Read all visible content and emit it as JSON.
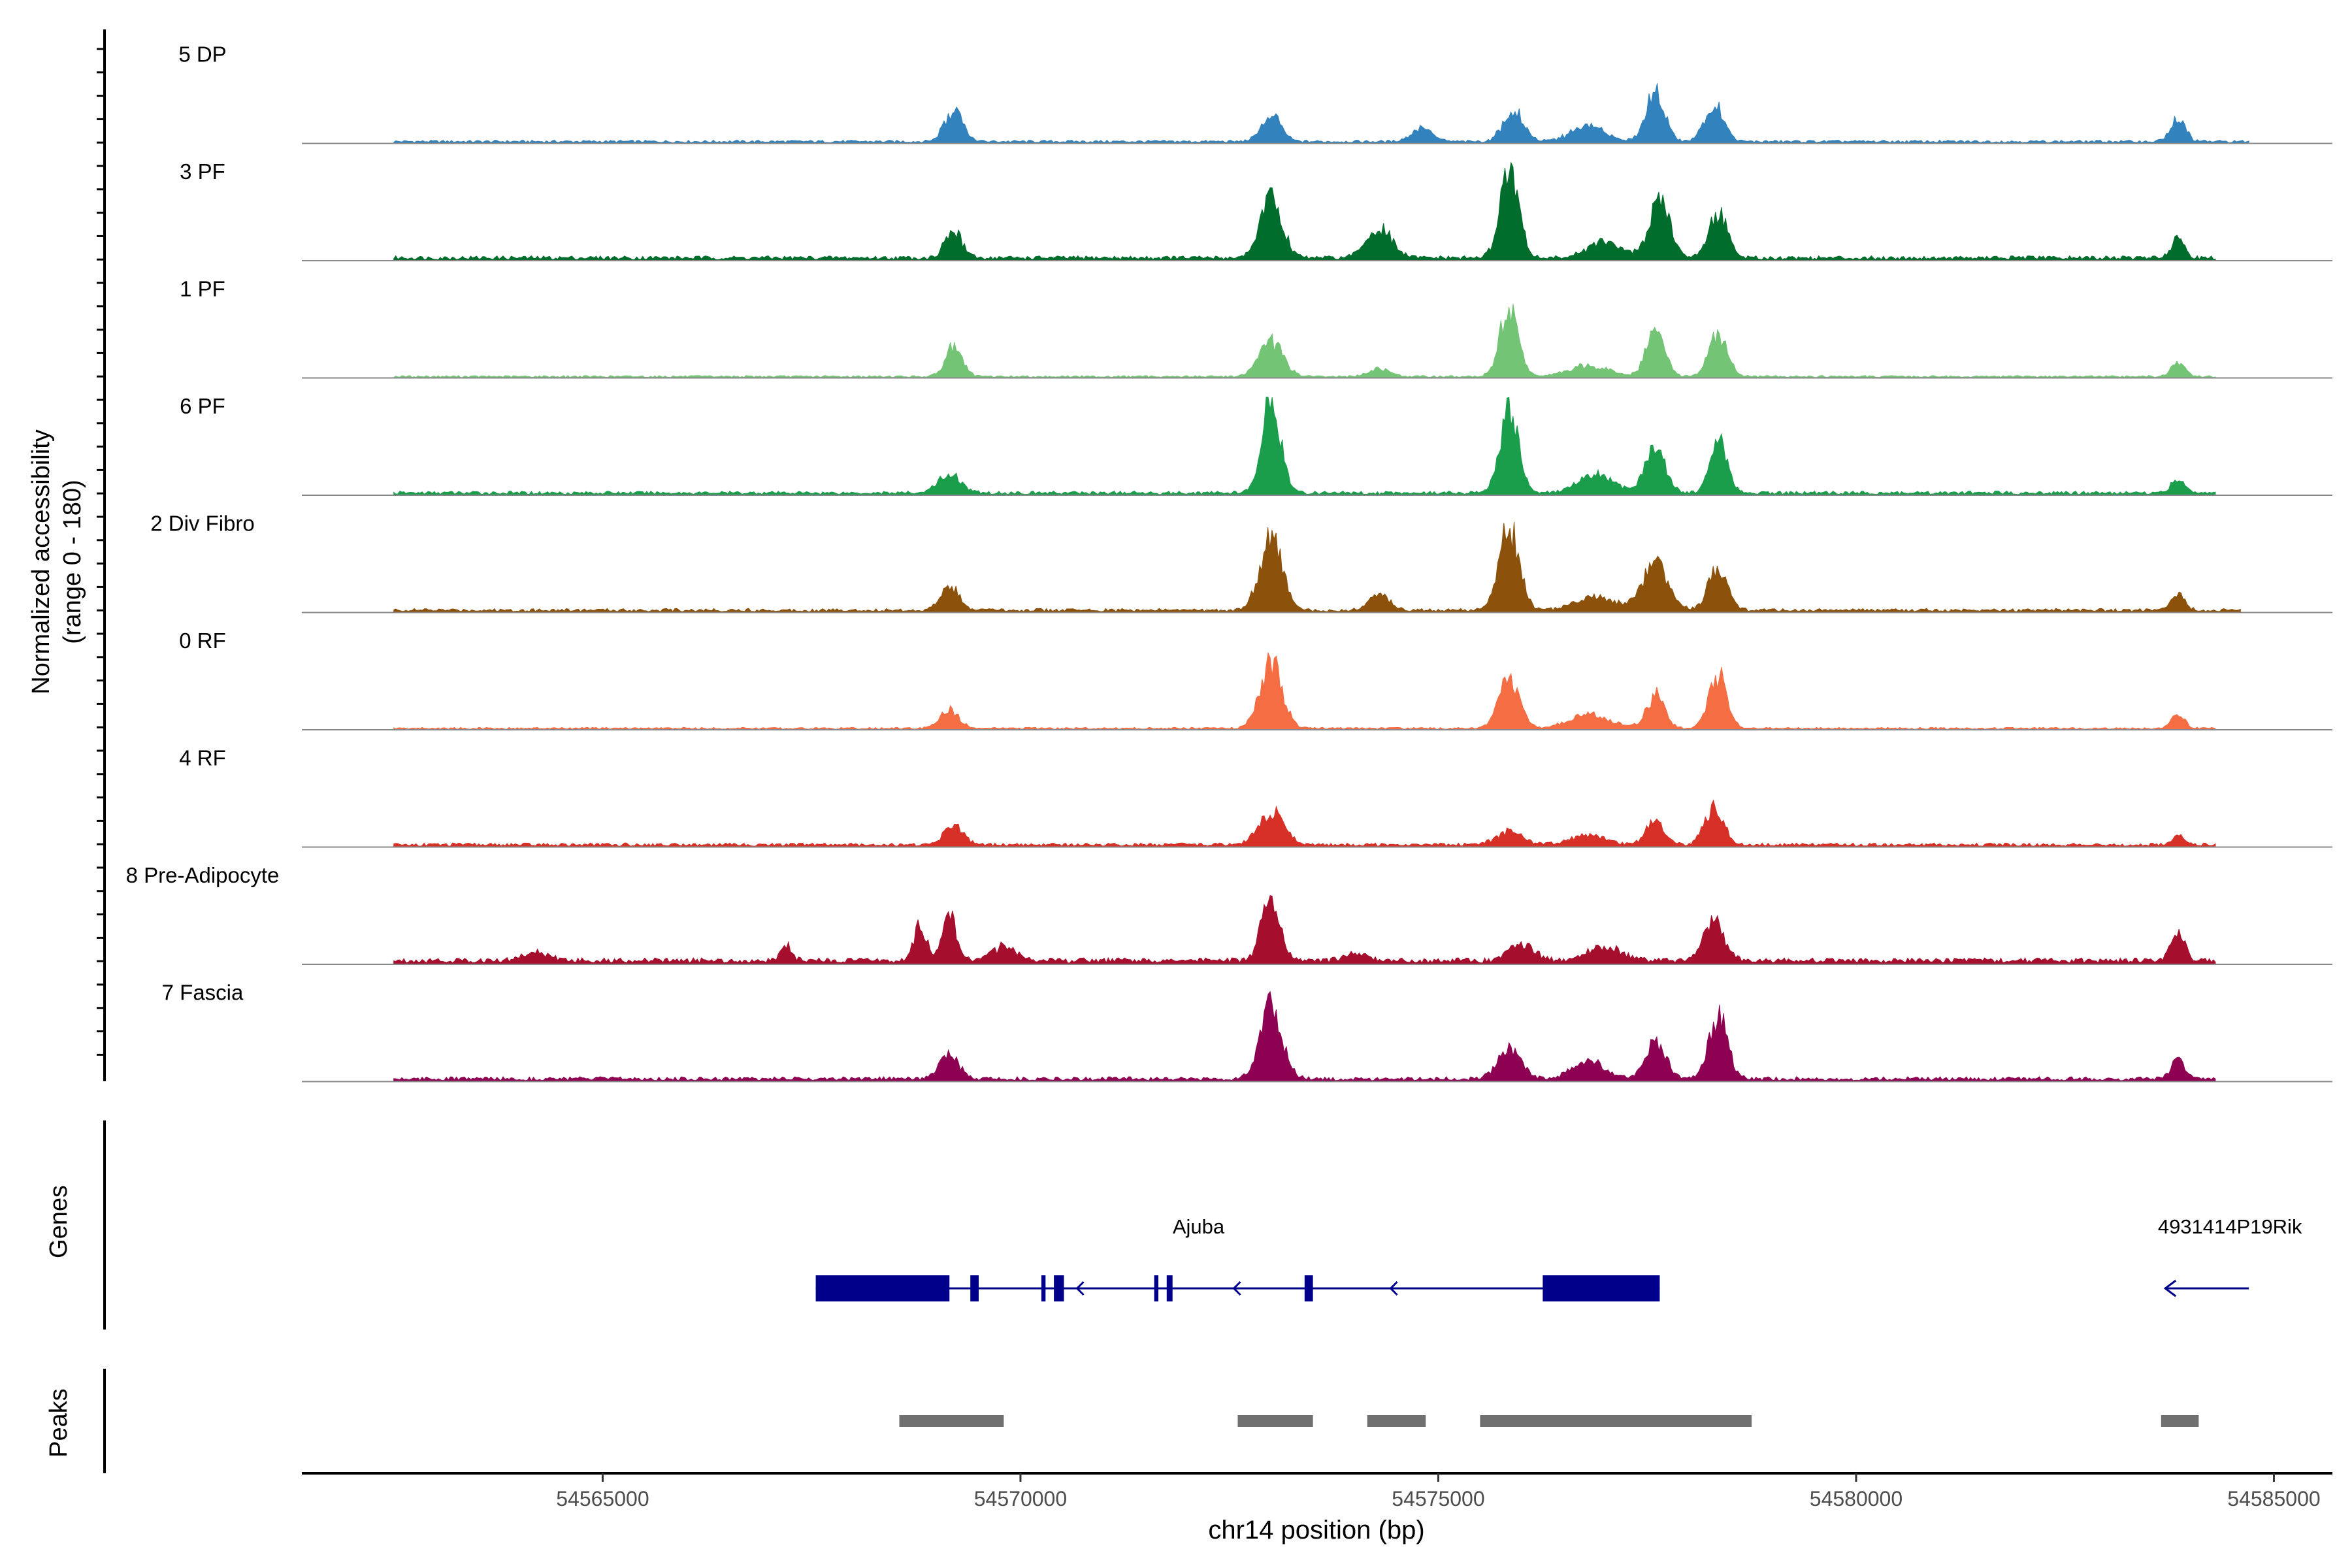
{
  "chart_data": {
    "type": "area",
    "title": "",
    "ylabel_line1": "Normalized accessibility",
    "ylabel_line2": "(range 0 - 180)",
    "xlabel": "chr14 position (bp)",
    "ylim": [
      0,
      180
    ],
    "xlim": [
      54561400,
      54585700
    ],
    "x_ticks": [
      54565000,
      54570000,
      54575000,
      54580000,
      54585000
    ],
    "x_tick_labels": [
      "54565000",
      "54570000",
      "54575000",
      "54580000",
      "54585000"
    ],
    "genes_label": "Genes",
    "peaks_label": "Peaks",
    "tracks": [
      {
        "name": "5 DP",
        "color": "#3182BD",
        "peaks": [
          [
            54569200,
            55,
            110
          ],
          [
            54573000,
            45,
            120
          ],
          [
            54574800,
            25,
            120
          ],
          [
            54575900,
            60,
            120
          ],
          [
            54576800,
            30,
            200
          ],
          [
            54577600,
            95,
            110
          ],
          [
            54578300,
            70,
            110
          ],
          [
            54583850,
            40,
            90
          ]
        ],
        "base": 4,
        "bg_start": 54562500,
        "bg_end": 54584700
      },
      {
        "name": "3 PF",
        "color": "#006D2C",
        "peaks": [
          [
            54569200,
            50,
            100
          ],
          [
            54573000,
            110,
            130
          ],
          [
            54574300,
            55,
            150
          ],
          [
            54575850,
            165,
            110
          ],
          [
            54577000,
            30,
            200
          ],
          [
            54577650,
            105,
            120
          ],
          [
            54578350,
            85,
            110
          ],
          [
            54583850,
            35,
            80
          ]
        ],
        "base": 6,
        "bg_start": 54562500,
        "bg_end": 54584300
      },
      {
        "name": "1 PF",
        "color": "#74C476",
        "peaks": [
          [
            54569200,
            55,
            100
          ],
          [
            54573000,
            65,
            140
          ],
          [
            54574300,
            15,
            120
          ],
          [
            54575850,
            125,
            110
          ],
          [
            54576800,
            20,
            250
          ],
          [
            54577600,
            85,
            110
          ],
          [
            54578350,
            80,
            110
          ],
          [
            54583850,
            25,
            80
          ]
        ],
        "base": 3,
        "bg_start": 54562500,
        "bg_end": 54584300
      },
      {
        "name": "6 PF",
        "color": "#1B9E4C",
        "peaks": [
          [
            54569150,
            35,
            130
          ],
          [
            54573000,
            175,
            110
          ],
          [
            54575850,
            160,
            110
          ],
          [
            54576900,
            35,
            200
          ],
          [
            54577600,
            85,
            120
          ],
          [
            54578350,
            95,
            100
          ],
          [
            54583850,
            25,
            80
          ]
        ],
        "base": 5,
        "bg_start": 54562500,
        "bg_end": 54584300
      },
      {
        "name": "2 Div Fibro",
        "color": "#8C510A",
        "peaks": [
          [
            54569150,
            45,
            110
          ],
          [
            54573000,
            135,
            130
          ],
          [
            54574300,
            35,
            110
          ],
          [
            54575850,
            150,
            120
          ],
          [
            54576900,
            25,
            250
          ],
          [
            54577600,
            85,
            150
          ],
          [
            54578350,
            80,
            110
          ],
          [
            54583850,
            30,
            80
          ]
        ],
        "base": 5,
        "bg_start": 54562500,
        "bg_end": 54584600
      },
      {
        "name": "0 RF",
        "color": "#F46D43",
        "peaks": [
          [
            54569150,
            35,
            110
          ],
          [
            54573000,
            120,
            130
          ],
          [
            54575850,
            90,
            120
          ],
          [
            54576800,
            25,
            250
          ],
          [
            54577600,
            60,
            110
          ],
          [
            54578350,
            95,
            110
          ],
          [
            54583850,
            25,
            80
          ]
        ],
        "base": 3,
        "bg_start": 54562500,
        "bg_end": 54584300
      },
      {
        "name": "4 RF",
        "color": "#D73027",
        "peaks": [
          [
            54569200,
            35,
            110
          ],
          [
            54573000,
            60,
            150
          ],
          [
            54575850,
            25,
            150
          ],
          [
            54576800,
            20,
            200
          ],
          [
            54577600,
            45,
            110
          ],
          [
            54578300,
            70,
            110
          ],
          [
            54583850,
            15,
            80
          ]
        ],
        "base": 5,
        "bg_start": 54562500,
        "bg_end": 54584300
      },
      {
        "name": "8 Pre-Adipocyte",
        "color": "#A50F2D",
        "peaks": [
          [
            54568800,
            65,
            70
          ],
          [
            54569150,
            75,
            90
          ],
          [
            54569800,
            25,
            150
          ],
          [
            54573000,
            115,
            110
          ],
          [
            54574000,
            15,
            120
          ],
          [
            54576000,
            30,
            150
          ],
          [
            54577000,
            25,
            200
          ],
          [
            54578300,
            70,
            120
          ],
          [
            54583850,
            55,
            80
          ],
          [
            54567200,
            30,
            60
          ],
          [
            54564200,
            15,
            150
          ]
        ],
        "base": 8,
        "bg_start": 54562500,
        "bg_end": 54584300
      },
      {
        "name": "7 Fascia",
        "color": "#8E0152",
        "peaks": [
          [
            54569150,
            45,
            110
          ],
          [
            54573000,
            135,
            130
          ],
          [
            54575850,
            55,
            140
          ],
          [
            54576800,
            30,
            200
          ],
          [
            54577600,
            65,
            120
          ],
          [
            54578350,
            120,
            110
          ],
          [
            54583850,
            35,
            80
          ]
        ],
        "base": 6,
        "bg_start": 54562500,
        "bg_end": 54584300
      }
    ],
    "genes": [
      {
        "name": "Ajuba",
        "start": 54567550,
        "end": 54577650,
        "strand": "-",
        "exons": [
          [
            54567550,
            54569150
          ],
          [
            54569400,
            54569500
          ],
          [
            54570250,
            54570300
          ],
          [
            54570400,
            54570520
          ],
          [
            54571600,
            54571650
          ],
          [
            54571750,
            54571820
          ],
          [
            54573400,
            54573500
          ],
          [
            54576250,
            54577650
          ]
        ]
      },
      {
        "name": "4931414P19Rik",
        "start": 54583700,
        "end": 54584700,
        "strand": "-",
        "exons": []
      }
    ],
    "peaks_regions": [
      [
        54568550,
        54569800
      ],
      [
        54572600,
        54573500
      ],
      [
        54574150,
        54574850
      ],
      [
        54575500,
        54578750
      ],
      [
        54583650,
        54584100
      ]
    ]
  }
}
